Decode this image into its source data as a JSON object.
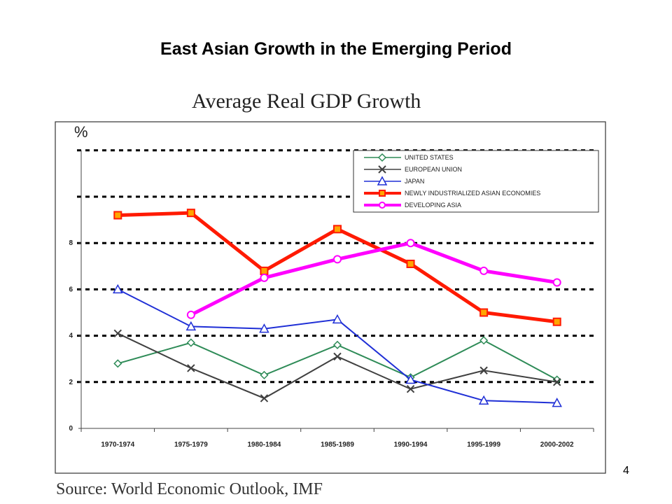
{
  "slide": {
    "title": "East Asian Growth in the Emerging Period",
    "source": "Source:   World Economic Outlook, IMF",
    "page_number": "4"
  },
  "chart_data": {
    "type": "line",
    "title": "Average Real GDP Growth",
    "ylabel": "%",
    "xlabel": "",
    "ylim": [
      0,
      12
    ],
    "yticks": [
      0,
      2,
      4,
      6,
      8
    ],
    "grid": "dashed horizontal",
    "legend_position": "top-right",
    "categories": [
      "1970-1974",
      "1975-1979",
      "1980-1984",
      "1985-1989",
      "1990-1994",
      "1995-1999",
      "2000-2002"
    ],
    "series": [
      {
        "name": "UNITED STATES",
        "color": "#2e8b57",
        "marker": "diamond",
        "values": [
          2.8,
          3.7,
          2.3,
          3.6,
          2.2,
          3.8,
          2.1
        ]
      },
      {
        "name": "EUROPEAN UNION",
        "color": "#404040",
        "marker": "x",
        "values": [
          4.1,
          2.6,
          1.3,
          3.1,
          1.7,
          2.5,
          2.0
        ]
      },
      {
        "name": "JAPAN",
        "color": "#1f2fd6",
        "marker": "triangle",
        "values": [
          6.0,
          4.4,
          4.3,
          4.7,
          2.1,
          1.2,
          1.1
        ]
      },
      {
        "name": "NEWLY INDUSTRIALIZED ASIAN ECONOMIES",
        "color": "#ff1a00",
        "marker": "square",
        "values": [
          9.2,
          9.3,
          6.8,
          8.6,
          7.1,
          5.0,
          4.6
        ]
      },
      {
        "name": "DEVELOPING ASIA",
        "color": "#ff00ff",
        "marker": "circle",
        "values": [
          null,
          4.9,
          6.5,
          7.3,
          8.0,
          6.8,
          6.3
        ]
      }
    ]
  }
}
